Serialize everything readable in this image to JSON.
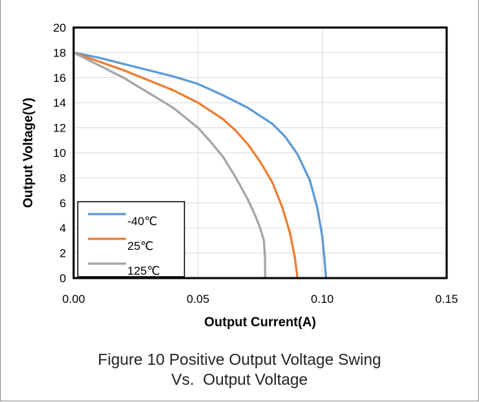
{
  "chart_data": {
    "type": "line",
    "xlabel": "Output Current(A)",
    "ylabel": "Output Voltage(V)",
    "xlim": [
      0,
      0.15
    ],
    "ylim": [
      0,
      20
    ],
    "xticks": [
      "0.00",
      "0.05",
      "0.10",
      "0.15"
    ],
    "yticks": [
      "0",
      "2",
      "4",
      "6",
      "8",
      "10",
      "12",
      "14",
      "16",
      "18",
      "20"
    ],
    "grid": true,
    "legend_position": "bottom-left",
    "series": [
      {
        "name": "-40℃",
        "color": "#5b9bd5",
        "points": [
          [
            0,
            18
          ],
          [
            0.01,
            17.6
          ],
          [
            0.02,
            17.1
          ],
          [
            0.03,
            16.6
          ],
          [
            0.04,
            16.1
          ],
          [
            0.05,
            15.5
          ],
          [
            0.06,
            14.6
          ],
          [
            0.07,
            13.6
          ],
          [
            0.08,
            12.3
          ],
          [
            0.085,
            11.3
          ],
          [
            0.09,
            9.9
          ],
          [
            0.095,
            7.8
          ],
          [
            0.098,
            5.6
          ],
          [
            0.1,
            3.3
          ],
          [
            0.101,
            1.2
          ],
          [
            0.1015,
            0
          ]
        ]
      },
      {
        "name": "25℃",
        "color": "#ed7d31",
        "points": [
          [
            0,
            18
          ],
          [
            0.01,
            17.3
          ],
          [
            0.02,
            16.6
          ],
          [
            0.03,
            15.8
          ],
          [
            0.04,
            15.0
          ],
          [
            0.05,
            14.0
          ],
          [
            0.06,
            12.7
          ],
          [
            0.065,
            11.8
          ],
          [
            0.07,
            10.7
          ],
          [
            0.075,
            9.3
          ],
          [
            0.08,
            7.6
          ],
          [
            0.084,
            5.6
          ],
          [
            0.087,
            3.6
          ],
          [
            0.089,
            1.6
          ],
          [
            0.09,
            0
          ]
        ]
      },
      {
        "name": "125℃",
        "color": "#a5a5a5",
        "points": [
          [
            0,
            18
          ],
          [
            0.01,
            17.0
          ],
          [
            0.02,
            16.0
          ],
          [
            0.03,
            14.8
          ],
          [
            0.04,
            13.6
          ],
          [
            0.05,
            12.0
          ],
          [
            0.055,
            10.9
          ],
          [
            0.06,
            9.7
          ],
          [
            0.065,
            8.1
          ],
          [
            0.07,
            6.3
          ],
          [
            0.073,
            5.0
          ],
          [
            0.075,
            4.0
          ],
          [
            0.0765,
            3.0
          ],
          [
            0.077,
            1.5
          ],
          [
            0.077,
            0
          ]
        ]
      }
    ]
  },
  "caption": {
    "line1": "Figure 10 Positive Output Voltage Swing",
    "line2": "Vs.  Output Voltage"
  }
}
